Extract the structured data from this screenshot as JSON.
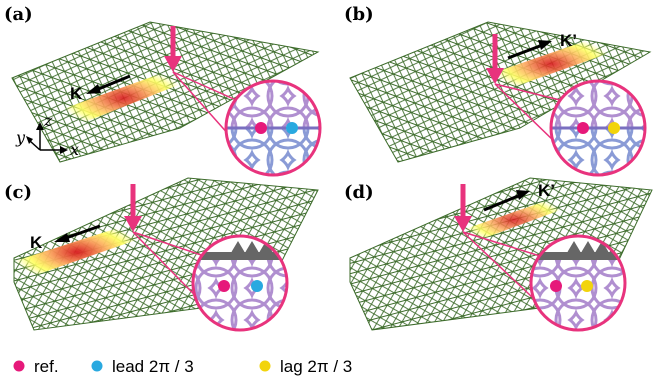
{
  "panels": [
    {
      "label": "(a)",
      "k_label": "K"
    },
    {
      "label": "(b)",
      "k_label": "K’"
    },
    {
      "label": "(c)",
      "k_label": "K"
    },
    {
      "label": "(d)",
      "k_label": "K’"
    }
  ],
  "axes": {
    "z": "z",
    "y": "y",
    "x": "x"
  },
  "legend": [
    {
      "label": "ref.",
      "color": "#e6197a"
    },
    {
      "label": "lead 2π / 3",
      "color": "#29a9e0"
    },
    {
      "label": "lag 2π / 3",
      "color": "#f2d40c"
    }
  ],
  "colors": {
    "lattice": "#3c6b2a",
    "arrow": "#e8337d",
    "inset_sites": "#b08fd0",
    "inset_bottom": "#8a9bd6",
    "edge": "#666666"
  }
}
